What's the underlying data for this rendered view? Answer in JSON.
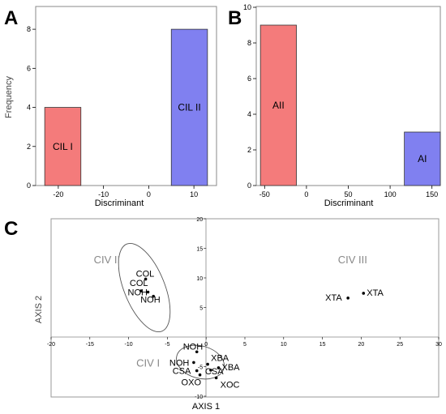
{
  "panels": {
    "a": {
      "letter": "A"
    },
    "b": {
      "letter": "B"
    },
    "c": {
      "letter": "C"
    }
  },
  "chart_data": [
    {
      "id": "A",
      "type": "bar",
      "xlabel": "Discriminant",
      "ylabel": "Frequency",
      "xlim": [
        -25,
        15
      ],
      "ylim": [
        0,
        9
      ],
      "xticks": [
        -20,
        -10,
        0,
        10
      ],
      "yticks": [
        0,
        2,
        4,
        6,
        8
      ],
      "bars": [
        {
          "label": "CIL I",
          "x0": -23,
          "x1": -15,
          "value": 4,
          "color": "#f47b7b"
        },
        {
          "label": "CIL II",
          "x0": 5,
          "x1": 13,
          "value": 8,
          "color": "#8080f0"
        }
      ]
    },
    {
      "id": "B",
      "type": "bar",
      "xlabel": "Discriminant",
      "ylabel": "",
      "xlim": [
        -60,
        160
      ],
      "ylim": [
        0,
        10
      ],
      "xticks": [
        -50,
        0,
        50,
        100,
        150
      ],
      "yticks": [
        0,
        2,
        4,
        6,
        8,
        10
      ],
      "bars": [
        {
          "label": "AII",
          "x0": -55,
          "x1": -12,
          "value": 9,
          "color": "#f47b7b"
        },
        {
          "label": "AI",
          "x0": 117,
          "x1": 160,
          "value": 3,
          "color": "#8080f0"
        }
      ]
    },
    {
      "id": "C",
      "type": "scatter",
      "xlabel": "AXIS 1",
      "ylabel": "AXIS 2",
      "xlim": [
        -20,
        30
      ],
      "ylim": [
        -10,
        20
      ],
      "xticks": [
        -20,
        -15,
        -10,
        -5,
        0,
        5,
        10,
        15,
        20,
        25,
        30
      ],
      "yticks": [
        -10,
        -5,
        5,
        10,
        15,
        20
      ],
      "group_labels": [
        {
          "text": "CIV II",
          "x": -14.5,
          "y": 12.5
        },
        {
          "text": "CIV III",
          "x": 17,
          "y": 12.5
        },
        {
          "text": "CIV I",
          "x": -9,
          "y": -5
        }
      ],
      "points": [
        {
          "label": "COL",
          "x": -7.8,
          "y": 9.8
        },
        {
          "label": "COL",
          "x": -8.4,
          "y": 7.8
        },
        {
          "label": "NOH",
          "x": -7.5,
          "y": 7.6
        },
        {
          "label": "NOH",
          "x": -6.8,
          "y": 6.9
        },
        {
          "label": "XTA",
          "x": 18.3,
          "y": 6.6
        },
        {
          "label": "XTA",
          "x": 20.3,
          "y": 7.4
        },
        {
          "label": "NOH",
          "x": -1.2,
          "y": -2.5
        },
        {
          "label": "NOH",
          "x": -1.6,
          "y": -4.3
        },
        {
          "label": "XBA",
          "x": 0.2,
          "y": -4.6
        },
        {
          "label": "XBA",
          "x": 1.6,
          "y": -5.2
        },
        {
          "label": "CSA",
          "x": -1.2,
          "y": -5.7
        },
        {
          "label": "CSA",
          "x": 0.6,
          "y": -5.6
        },
        {
          "label": "OXO",
          "x": -0.8,
          "y": -6.4
        },
        {
          "label": "XOC",
          "x": 1.3,
          "y": -6.9
        }
      ]
    }
  ]
}
